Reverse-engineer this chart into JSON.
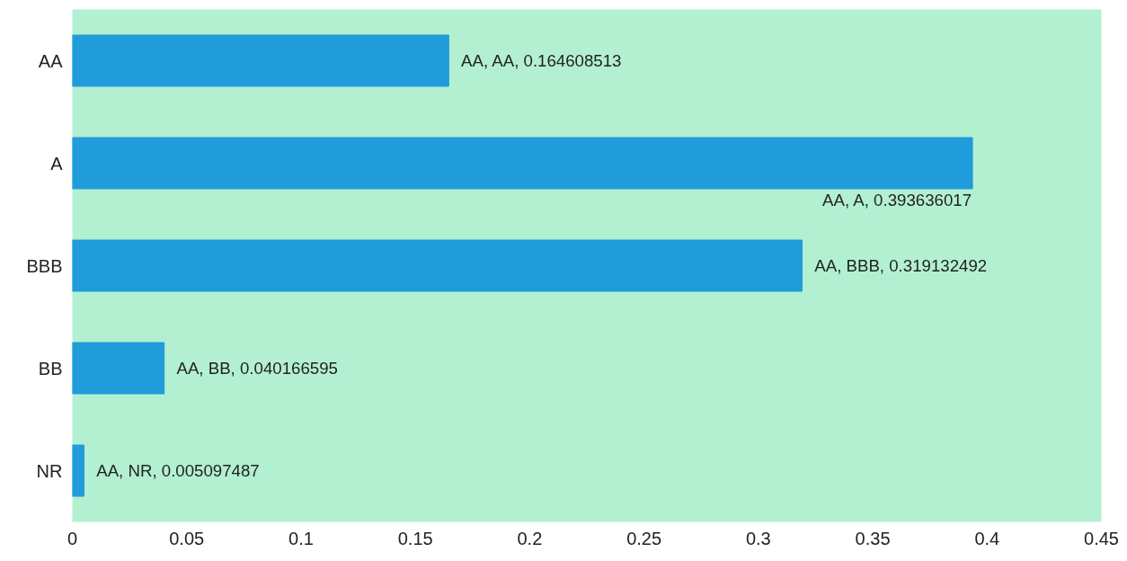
{
  "chart_data": {
    "type": "bar",
    "orientation": "horizontal",
    "categories": [
      "AA",
      "A",
      "BBB",
      "BB",
      "NR"
    ],
    "series": [
      {
        "color": "#209cdb",
        "values": [
          0.164608513,
          0.393636017,
          0.319132492,
          0.040166595,
          0.005097487
        ],
        "value_labels": [
          "AA, AA, 0.164608513",
          "AA, A, 0.393636017",
          "AA, BBB, 0.319132492",
          "AA, BB, 0.040166595",
          "AA, NR, 0.005097487"
        ]
      }
    ],
    "xlim": [
      0,
      0.45
    ],
    "xticks": [
      0,
      0.05,
      0.1,
      0.15,
      0.2,
      0.25,
      0.3,
      0.35,
      0.4,
      0.45
    ],
    "grid": false
  }
}
